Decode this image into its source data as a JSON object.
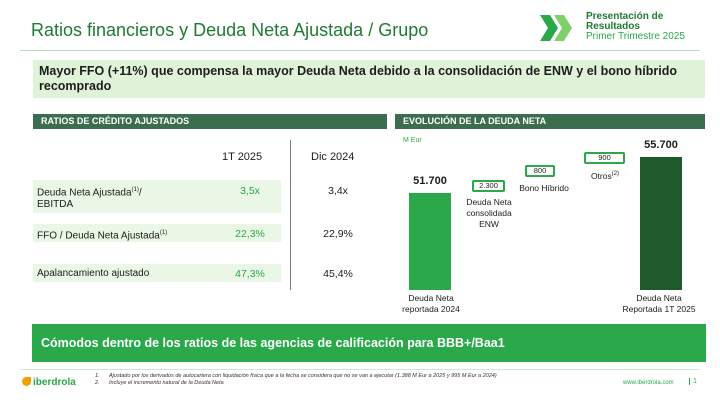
{
  "header": {
    "title": "Ratios financieros y Deuda Neta Ajustada / Grupo",
    "pres_line1": "Presentación de",
    "pres_line2": "Resultados",
    "pres_line3": "Primer Trimestre 2025",
    "logo_icon": "double-chevron-icon"
  },
  "headline": "Mayor FFO (+11%) que compensa la mayor Deuda Neta debido a la consolidación de ENW y el bono híbrido recomprado",
  "ratios": {
    "section_title": "RATIOS DE CRÉDITO AJUSTADOS",
    "col1": "1T 2025",
    "col2": "Dic 2024",
    "rows": [
      {
        "label": "Deuda Neta Ajustada",
        "sup": "(1)",
        "label_suffix": "/",
        "label_line2": "EBITDA",
        "v1": "3,5x",
        "v2": "3,4x"
      },
      {
        "label": "FFO / Deuda Neta Ajustada",
        "sup": "(1)",
        "v1": "22,3%",
        "v2": "22,9%"
      },
      {
        "label": "Apalancamiento ajustado",
        "v1": "47,3%",
        "v2": "45,4%"
      }
    ]
  },
  "evolution": {
    "section_title": "EVOLUCIÓN DE LA DEUDA NETA",
    "unit": "M Eur",
    "bars": [
      {
        "value": "51.700",
        "label_line1": "Deuda Neta",
        "label_line2": "reportada 2024"
      },
      {
        "value": "55.700",
        "label_line1": "Deuda Neta",
        "label_line2": "Reportada 1T 2025"
      }
    ],
    "steps": [
      {
        "value": "2.300",
        "label_line1": "Deuda Neta",
        "label_line2": "consolidada",
        "label_line3": "ENW"
      },
      {
        "value": "800",
        "label_line1": "Bono Híbrido"
      },
      {
        "value": "900",
        "label_line1": "Otros",
        "sup": "(2)"
      }
    ]
  },
  "bottom_bar": "Cómodos dentro de los ratios de las agencias de calificación para  BBB+/Baa1",
  "footer": {
    "brand": "iberdrola",
    "note1_num": "1.",
    "note1": "Ajustado por los derivados de autocartera con liquidación física que a la fecha se considera que no se van a ejecutar (1.388 M Eur a 2025 y 995 M Eur a 2024)",
    "note2_num": "2.",
    "note2": "Incluye el incremento natural de la Deuda Neta",
    "site": "www.iberdrola.com",
    "page": "1"
  },
  "colors": {
    "green": "#2aa84a",
    "dark_green": "#1f7a34",
    "deep_green": "#1e5a2b",
    "section_bar": "#3d6d4f",
    "light_green": "#dff3d8"
  }
}
